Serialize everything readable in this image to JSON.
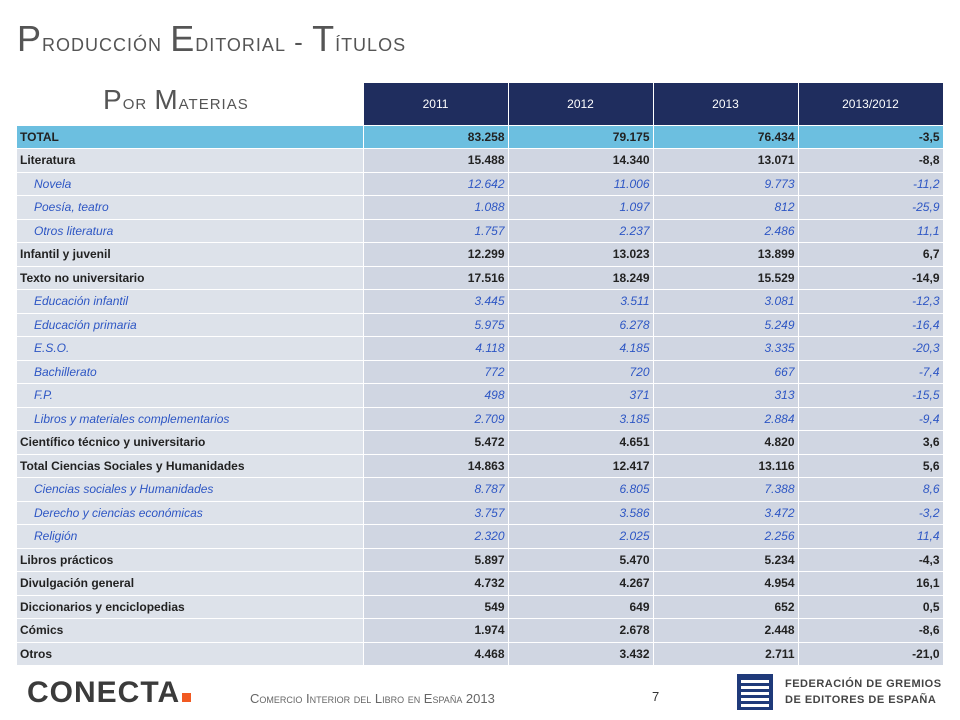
{
  "title": {
    "first": "P",
    "rest": "roducción ",
    "first2": "E",
    "rest2": "ditorial - ",
    "first3": "T",
    "rest3": "ítulos"
  },
  "subtitle": {
    "first": "P",
    "rest": "or ",
    "first2": "M",
    "rest2": "aterias"
  },
  "table": {
    "headers": [
      "2011",
      "2012",
      "2013",
      "2013/2012"
    ],
    "rows": [
      {
        "label": "TOTAL",
        "v2011": "83.258",
        "v2012": "79.175",
        "v2013": "76.434",
        "var": "-3,5"
      },
      {
        "label": "Literatura",
        "v2011": "15.488",
        "v2012": "14.340",
        "v2013": "13.071",
        "var": "-8,8"
      },
      {
        "label": "Novela",
        "v2011": "12.642",
        "v2012": "11.006",
        "v2013": "9.773",
        "var": "-11,2"
      },
      {
        "label": "Poesía, teatro",
        "v2011": "1.088",
        "v2012": "1.097",
        "v2013": "812",
        "var": "-25,9"
      },
      {
        "label": "Otros literatura",
        "v2011": "1.757",
        "v2012": "2.237",
        "v2013": "2.486",
        "var": "11,1"
      },
      {
        "label": "Infantil y juvenil",
        "v2011": "12.299",
        "v2012": "13.023",
        "v2013": "13.899",
        "var": "6,7"
      },
      {
        "label": "Texto no universitario",
        "v2011": "17.516",
        "v2012": "18.249",
        "v2013": "15.529",
        "var": "-14,9"
      },
      {
        "label": "Educación infantil",
        "v2011": "3.445",
        "v2012": "3.511",
        "v2013": "3.081",
        "var": "-12,3"
      },
      {
        "label": "Educación primaria",
        "v2011": "5.975",
        "v2012": "6.278",
        "v2013": "5.249",
        "var": "-16,4"
      },
      {
        "label": "E.S.O.",
        "v2011": "4.118",
        "v2012": "4.185",
        "v2013": "3.335",
        "var": "-20,3"
      },
      {
        "label": "Bachillerato",
        "v2011": "772",
        "v2012": "720",
        "v2013": "667",
        "var": "-7,4"
      },
      {
        "label": "F.P.",
        "v2011": "498",
        "v2012": "371",
        "v2013": "313",
        "var": "-15,5"
      },
      {
        "label": "Libros y materiales complementarios",
        "v2011": "2.709",
        "v2012": "3.185",
        "v2013": "2.884",
        "var": "-9,4"
      },
      {
        "label": "Científico  técnico y universitario",
        "v2011": "5.472",
        "v2012": "4.651",
        "v2013": "4.820",
        "var": "3,6"
      },
      {
        "label": "Total Ciencias Sociales y Humanidades",
        "v2011": "14.863",
        "v2012": "12.417",
        "v2013": "13.116",
        "var": "5,6"
      },
      {
        "label": "Ciencias sociales y Humanidades",
        "v2011": "8.787",
        "v2012": "6.805",
        "v2013": "7.388",
        "var": "8,6"
      },
      {
        "label": "Derecho y ciencias económicas",
        "v2011": "3.757",
        "v2012": "3.586",
        "v2013": "3.472",
        "var": "-3,2"
      },
      {
        "label": "Religión",
        "v2011": "2.320",
        "v2012": "2.025",
        "v2013": "2.256",
        "var": "11,4"
      },
      {
        "label": "Libros prácticos",
        "v2011": "5.897",
        "v2012": "5.470",
        "v2013": "5.234",
        "var": "-4,3"
      },
      {
        "label": "Divulgación general",
        "v2011": "4.732",
        "v2012": "4.267",
        "v2013": "4.954",
        "var": "16,1"
      },
      {
        "label": "Diccionarios y enciclopedias",
        "v2011": "549",
        "v2012": "649",
        "v2013": "652",
        "var": "0,5"
      },
      {
        "label": "Cómics",
        "v2011": "1.974",
        "v2012": "2.678",
        "v2013": "2.448",
        "var": "-8,6"
      },
      {
        "label": "Otros",
        "v2011": "4.468",
        "v2012": "3.432",
        "v2013": "2.711",
        "var": "-21,0"
      }
    ]
  },
  "footer": {
    "logo": "CONECTA",
    "text": "Comercio Interior del Libro en España 2013",
    "page": "7",
    "federation_line1": "FEDERACIÓN DE GREMIOS",
    "federation_line2": "DE EDITORES DE ESPAÑA"
  },
  "colors": {
    "header": "#1f2d5e",
    "total_row": "#6cbfe0",
    "row": "#d0d6e2",
    "sub_text": "#2d56c4",
    "logo_accent": "#f15a22"
  }
}
